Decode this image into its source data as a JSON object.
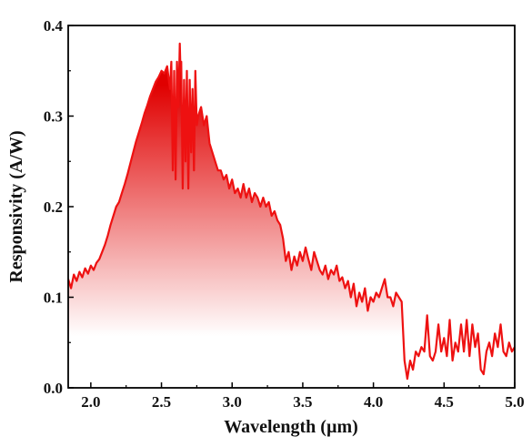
{
  "chart_data": {
    "type": "area",
    "title": "",
    "xlabel": "Wavelength (µm)",
    "ylabel": "Responsivity (A/W)",
    "xlim": [
      1.84,
      5.0
    ],
    "ylim": [
      0.0,
      0.4
    ],
    "x_ticks": [
      "2.0",
      "2.5",
      "3.0",
      "3.5",
      "4.0",
      "4.5",
      "5.0"
    ],
    "y_ticks": [
      "0.0",
      "0.1",
      "0.2",
      "0.3",
      "0.4"
    ],
    "grid": false,
    "legend": "none",
    "series": [
      {
        "line_color": "#ee1111",
        "fill_gradient": [
          "#e00000",
          "#ffffff"
        ],
        "x": [
          1.84,
          1.86,
          1.88,
          1.9,
          1.92,
          1.94,
          1.96,
          1.98,
          2.0,
          2.02,
          2.04,
          2.06,
          2.08,
          2.1,
          2.12,
          2.14,
          2.16,
          2.18,
          2.2,
          2.22,
          2.24,
          2.26,
          2.28,
          2.3,
          2.32,
          2.34,
          2.36,
          2.38,
          2.4,
          2.42,
          2.44,
          2.46,
          2.48,
          2.5,
          2.52,
          2.54,
          2.56,
          2.57,
          2.58,
          2.59,
          2.6,
          2.61,
          2.62,
          2.63,
          2.635,
          2.64,
          2.65,
          2.66,
          2.67,
          2.68,
          2.69,
          2.7,
          2.71,
          2.72,
          2.73,
          2.74,
          2.75,
          2.76,
          2.78,
          2.8,
          2.82,
          2.84,
          2.86,
          2.88,
          2.9,
          2.92,
          2.94,
          2.96,
          2.98,
          3.0,
          3.02,
          3.04,
          3.06,
          3.08,
          3.1,
          3.12,
          3.14,
          3.16,
          3.18,
          3.2,
          3.22,
          3.24,
          3.26,
          3.28,
          3.3,
          3.32,
          3.34,
          3.36,
          3.38,
          3.4,
          3.42,
          3.44,
          3.46,
          3.48,
          3.5,
          3.52,
          3.54,
          3.56,
          3.58,
          3.6,
          3.62,
          3.64,
          3.66,
          3.68,
          3.7,
          3.72,
          3.74,
          3.76,
          3.78,
          3.8,
          3.82,
          3.84,
          3.86,
          3.88,
          3.9,
          3.92,
          3.94,
          3.96,
          3.98,
          4.0,
          4.02,
          4.04,
          4.06,
          4.08,
          4.1,
          4.12,
          4.14,
          4.16,
          4.18,
          4.2,
          4.22,
          4.24,
          4.26,
          4.28,
          4.3,
          4.32,
          4.34,
          4.36,
          4.38,
          4.4,
          4.42,
          4.44,
          4.46,
          4.48,
          4.5,
          4.52,
          4.54,
          4.56,
          4.58,
          4.6,
          4.62,
          4.64,
          4.66,
          4.68,
          4.7,
          4.72,
          4.74,
          4.76,
          4.78,
          4.8,
          4.82,
          4.84,
          4.86,
          4.88,
          4.9,
          4.92,
          4.94,
          4.96,
          4.98,
          5.0
        ],
        "y": [
          0.12,
          0.11,
          0.125,
          0.118,
          0.128,
          0.122,
          0.132,
          0.126,
          0.135,
          0.13,
          0.138,
          0.142,
          0.15,
          0.158,
          0.168,
          0.18,
          0.19,
          0.2,
          0.205,
          0.215,
          0.225,
          0.236,
          0.248,
          0.26,
          0.272,
          0.282,
          0.292,
          0.303,
          0.312,
          0.322,
          0.33,
          0.338,
          0.343,
          0.35,
          0.347,
          0.355,
          0.33,
          0.36,
          0.24,
          0.35,
          0.23,
          0.36,
          0.31,
          0.38,
          0.35,
          0.36,
          0.22,
          0.34,
          0.25,
          0.35,
          0.22,
          0.34,
          0.26,
          0.33,
          0.24,
          0.35,
          0.29,
          0.3,
          0.31,
          0.29,
          0.3,
          0.27,
          0.26,
          0.25,
          0.24,
          0.24,
          0.23,
          0.235,
          0.22,
          0.23,
          0.215,
          0.22,
          0.21,
          0.225,
          0.21,
          0.22,
          0.205,
          0.215,
          0.21,
          0.2,
          0.21,
          0.2,
          0.205,
          0.19,
          0.195,
          0.185,
          0.18,
          0.165,
          0.14,
          0.15,
          0.13,
          0.145,
          0.135,
          0.15,
          0.14,
          0.155,
          0.142,
          0.13,
          0.15,
          0.14,
          0.13,
          0.125,
          0.135,
          0.12,
          0.13,
          0.125,
          0.135,
          0.118,
          0.122,
          0.11,
          0.118,
          0.1,
          0.115,
          0.09,
          0.105,
          0.095,
          0.11,
          0.085,
          0.1,
          0.095,
          0.105,
          0.1,
          0.11,
          0.12,
          0.1,
          0.1,
          0.09,
          0.105,
          0.1,
          0.095,
          0.03,
          0.01,
          0.03,
          0.02,
          0.04,
          0.035,
          0.045,
          0.04,
          0.08,
          0.035,
          0.03,
          0.04,
          0.07,
          0.04,
          0.055,
          0.035,
          0.075,
          0.03,
          0.05,
          0.04,
          0.07,
          0.04,
          0.075,
          0.035,
          0.07,
          0.045,
          0.06,
          0.02,
          0.015,
          0.04,
          0.05,
          0.035,
          0.06,
          0.045,
          0.07,
          0.04,
          0.035,
          0.05,
          0.04,
          0.045
        ]
      }
    ]
  }
}
